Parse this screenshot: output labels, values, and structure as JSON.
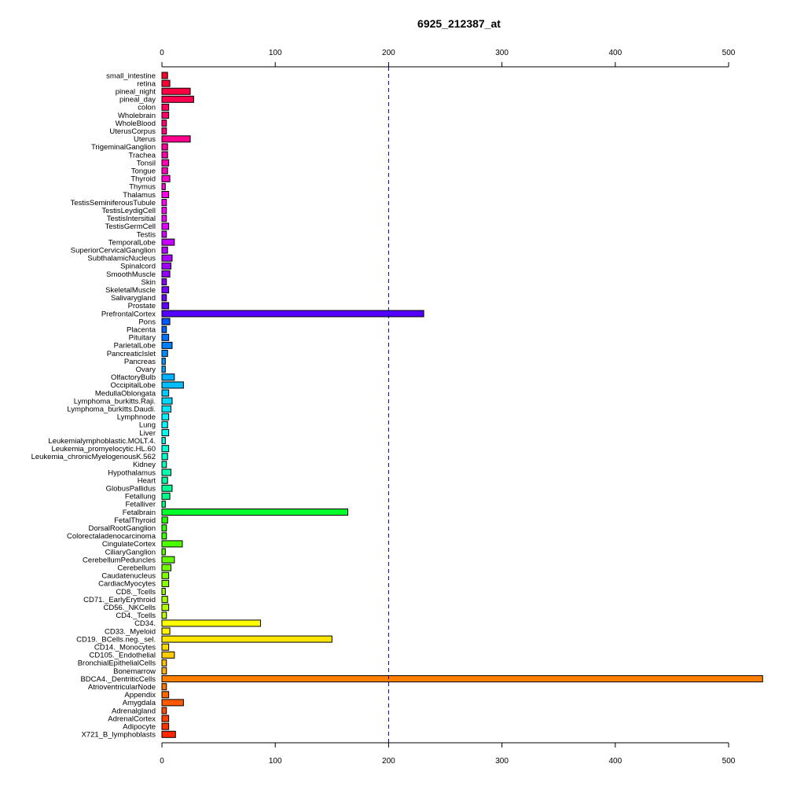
{
  "chart_data": {
    "type": "bar",
    "orientation": "horizontal",
    "title": "6925_212387_at",
    "xlabel": "",
    "ylabel": "",
    "xlim": [
      0,
      500
    ],
    "x_ticks": [
      0,
      100,
      200,
      300,
      400,
      500
    ],
    "reference_line": {
      "value": 200,
      "style": "dashed",
      "color": "#00008b"
    },
    "axis_positions": [
      "top",
      "bottom"
    ],
    "grid": false,
    "legend": "none",
    "categories": [
      "small_intestine",
      "retina",
      "pineal_night",
      "pineal_day",
      "colon",
      "Wholebrain",
      "WholeBlood",
      "UterusCorpus",
      "Uterus",
      "TrigeminalGanglion",
      "Trachea",
      "Tonsil",
      "Tongue",
      "Thyroid",
      "Thymus",
      "Thalamus",
      "TestisSeminiferousTubule",
      "TestisLeydigCell",
      "TestisIntersitial",
      "TestisGermCell",
      "Testis",
      "TemporalLobe",
      "SuperiorCervicalGanglion",
      "SubthalamicNucleus",
      "Spinalcord",
      "SmoothMuscle",
      "Skin",
      "SkeletalMuscle",
      "Salivarygland",
      "Prostate",
      "PrefrontalCortex",
      "Pons",
      "Placenta",
      "Pituitary",
      "ParietalLobe",
      "PancreaticIslet",
      "Pancreas",
      "Ovary",
      "OlfactoryBulb",
      "OccipitalLobe",
      "MedullaOblongata",
      "Lymphoma_burkitts.Raji.",
      "Lymphoma_burkitts.Daudi.",
      "Lymphnode",
      "Lung",
      "Liver",
      "Leukemialymphoblastic.MOLT.4.",
      "Leukemia_promyelocytic.HL.60",
      "Leukemia_chronicMyelogenousK.562",
      "Kidney",
      "Hypothalamus",
      "Heart",
      "GlobusPallidus",
      "Fetallung",
      "Fetalliver",
      "Fetalbrain",
      "FetalThyroid",
      "DorsalRootGanglion",
      "Colorectaladenocarcinoma",
      "CingulateCortex",
      "CiliaryGanglion",
      "CerebellumPeduncles",
      "Cerebellum",
      "Caudatenucleus",
      "CardiacMyocytes",
      "CD8._Tcells",
      "CD71._EarlyErythroid",
      "CD56._NKCells",
      "CD4._Tcells",
      "CD34.",
      "CD33._Myeloid",
      "CD19._BCells.neg._sel.",
      "CD14._Monocytes",
      "CD105._Endothelial",
      "BronchialEpithelialCells",
      "Bonemarrow",
      "BDCA4._DentriticCells",
      "AtrioventricularNode",
      "Appendix",
      "Amygdala",
      "Adrenalgland",
      "AdrenalCortex",
      "Adipocyte",
      "X721_B_lymphoblasts"
    ],
    "values": [
      5,
      7,
      25,
      28,
      6,
      6,
      4,
      4,
      25,
      5,
      5,
      6,
      5,
      7,
      3,
      6,
      4,
      4,
      4,
      6,
      4,
      11,
      5,
      9,
      8,
      7,
      4,
      6,
      4,
      6,
      231,
      7,
      4,
      6,
      9,
      5,
      3,
      3,
      11,
      19,
      6,
      9,
      8,
      6,
      5,
      6,
      3,
      6,
      5,
      4,
      8,
      5,
      9,
      7,
      3,
      164,
      5,
      4,
      4,
      18,
      3,
      11,
      8,
      6,
      6,
      3,
      5,
      6,
      4,
      87,
      7,
      150,
      6,
      11,
      4,
      4,
      530,
      4,
      6,
      19,
      4,
      6,
      6,
      12
    ],
    "colors": [
      "#FF0028",
      "#FF0035",
      "#FF0042",
      "#FF004E",
      "#FF005B",
      "#FF0068",
      "#FF0075",
      "#FF0081",
      "#FF008E",
      "#FF009B",
      "#FF00A8",
      "#FF00B4",
      "#FF00C1",
      "#FF00CE",
      "#FF00DB",
      "#FF00E7",
      "#FF00F4",
      "#F900FF",
      "#EC00FF",
      "#DF00FF",
      "#D200FF",
      "#C600FF",
      "#B900FF",
      "#AC00FF",
      "#9F00FF",
      "#9300FF",
      "#8600FF",
      "#7900FF",
      "#6C00FF",
      "#6000FF",
      "#5300FF",
      "#0058FF",
      "#0065FF",
      "#0072FF",
      "#007FFF",
      "#008BFF",
      "#0098FF",
      "#00A5FF",
      "#00B2FF",
      "#00BEFF",
      "#00CBFF",
      "#00D8FF",
      "#00E5FF",
      "#00F1FF",
      "#00FFFF",
      "#00FFF1",
      "#00FFE4",
      "#00FFD7",
      "#00FFCA",
      "#00FFBE",
      "#00FFB1",
      "#00FFA4",
      "#00FF97",
      "#00FF8B",
      "#00FF7E",
      "#00FF2A",
      "#24FF00",
      "#31FF00",
      "#3EFF00",
      "#4AFF00",
      "#57FF00",
      "#64FF00",
      "#71FF00",
      "#7DFF00",
      "#8AFF00",
      "#97FF00",
      "#A4FF00",
      "#B0FF00",
      "#BDFF00",
      "#FFFF00",
      "#FFF200",
      "#FFE500",
      "#FFD800",
      "#FFCC00",
      "#FFBF00",
      "#FFB200",
      "#FF8000",
      "#FF7300",
      "#FF6600",
      "#FF5900",
      "#FF4D00",
      "#FF4000",
      "#FF3300",
      "#FF2600"
    ]
  }
}
